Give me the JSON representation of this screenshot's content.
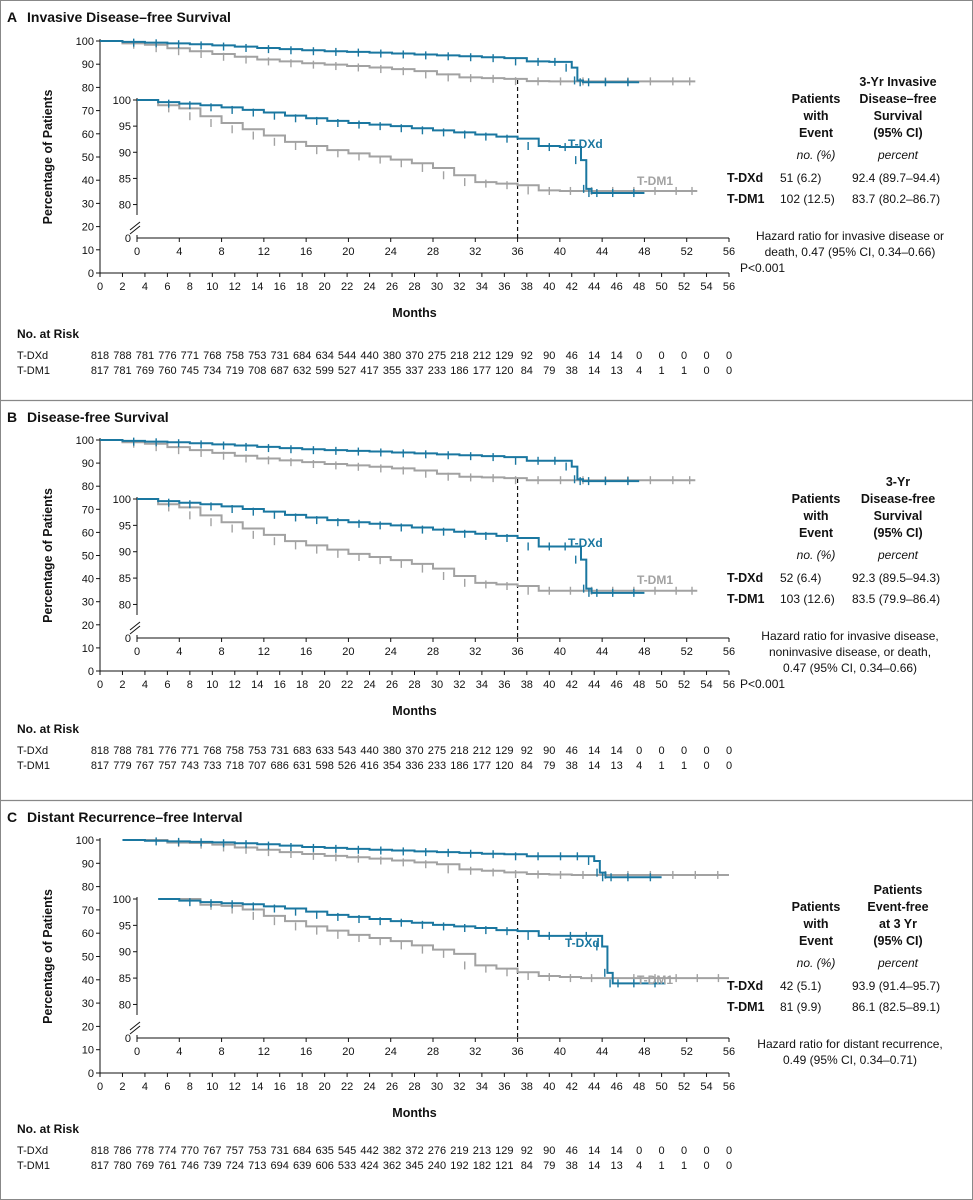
{
  "figure": {
    "border_color": "#888888"
  },
  "colors": {
    "T-DXd": "#1a77a0",
    "T-DM1": "#a2a2a2",
    "text": "#111111"
  },
  "x_ticks": [
    0,
    2,
    4,
    6,
    8,
    10,
    12,
    14,
    16,
    18,
    20,
    22,
    24,
    26,
    28,
    30,
    32,
    34,
    36,
    38,
    40,
    42,
    44,
    46,
    48,
    50,
    52,
    54,
    56
  ],
  "inset_x_ticks": [
    0,
    4,
    8,
    12,
    16,
    20,
    24,
    28,
    32,
    36,
    40,
    44,
    48,
    52,
    56
  ],
  "chart_data": [
    {
      "type": "line",
      "panel_letter": "A",
      "title": "Invasive Disease–free Survival",
      "xlabel": "Months",
      "ylabel": "Percentage of Patients",
      "xlim": [
        0,
        56
      ],
      "ylim": [
        0,
        100
      ],
      "y_ticks_main": [
        0,
        10,
        20,
        30,
        40,
        50,
        60,
        70,
        80,
        90,
        100
      ],
      "inset": {
        "y_ticks": [
          80,
          85,
          90,
          95,
          100
        ],
        "ylim": [
          78,
          100
        ],
        "vline_x": 36
      },
      "series": [
        {
          "name": "T-DXd",
          "x": [
            0,
            2,
            4,
            6,
            8,
            10,
            12,
            14,
            16,
            18,
            20,
            22,
            24,
            26,
            28,
            30,
            32,
            34,
            36,
            38,
            40,
            41,
            42,
            42.5,
            43,
            44,
            46,
            48
          ],
          "y": [
            100,
            99.6,
            99.3,
            99.0,
            98.6,
            98.1,
            97.6,
            97.0,
            96.5,
            96.0,
            95.6,
            95.3,
            95.0,
            94.6,
            94.2,
            93.8,
            93.4,
            93.0,
            92.6,
            91.2,
            91.0,
            91.0,
            88.5,
            83.0,
            82.2,
            82.2,
            82.2,
            82.2
          ]
        },
        {
          "name": "T-DM1",
          "x": [
            0,
            2,
            4,
            6,
            8,
            10,
            12,
            14,
            16,
            18,
            20,
            22,
            24,
            26,
            28,
            30,
            32,
            34,
            36,
            38,
            40,
            42,
            44,
            46,
            48,
            50,
            52,
            53
          ],
          "y": [
            100,
            99.0,
            98.4,
            96.9,
            95.6,
            94.4,
            93.2,
            92.0,
            91.2,
            90.4,
            89.8,
            89.2,
            88.6,
            87.9,
            87.0,
            85.6,
            84.3,
            84.0,
            83.7,
            82.7,
            82.6,
            82.6,
            82.6,
            82.6,
            82.6,
            82.6,
            82.6,
            82.6
          ]
        }
      ],
      "curve_labels": {
        "T-DXd": "T-DXd",
        "T-DM1": "T-DM1"
      },
      "table": {
        "col1_head": [
          "Patients",
          "with",
          "Event"
        ],
        "col2_head": [
          "3-Yr Invasive",
          "Disease–free",
          "Survival",
          "(95% CI)"
        ],
        "col1_unit": "no. (%)",
        "col2_unit": "percent",
        "rows": [
          {
            "label": "T-DXd",
            "events": "51 (6.2)",
            "estimate": "92.4 (89.7–94.4)"
          },
          {
            "label": "T-DM1",
            "events": "102 (12.5)",
            "estimate": "83.7 (80.2–86.7)"
          }
        ],
        "hr_lines": [
          "Hazard ratio for invasive disease or",
          "death, 0.47 (95% CI, 0.34–0.66)",
          "P<0.001"
        ]
      },
      "risk": {
        "header": "No. at Risk",
        "rows": [
          {
            "label": "T-DXd",
            "values": [
              "818",
              "788",
              "781",
              "776",
              "771",
              "768",
              "758",
              "753",
              "731",
              "684",
              "634",
              "544",
              "440",
              "380",
              "370",
              "275",
              "218",
              "212",
              "129",
              "92",
              "90",
              "46",
              "14",
              "14",
              "0",
              "0",
              "0",
              "0",
              "0"
            ]
          },
          {
            "label": "T-DM1",
            "values": [
              "817",
              "781",
              "769",
              "760",
              "745",
              "734",
              "719",
              "708",
              "687",
              "632",
              "599",
              "527",
              "417",
              "355",
              "337",
              "233",
              "186",
              "177",
              "120",
              "84",
              "79",
              "38",
              "14",
              "13",
              "4",
              "1",
              "1",
              "0",
              "0"
            ]
          }
        ]
      }
    },
    {
      "type": "line",
      "panel_letter": "B",
      "title": "Disease-free Survival",
      "xlabel": "Months",
      "ylabel": "Percentage of Patients",
      "xlim": [
        0,
        56
      ],
      "ylim": [
        0,
        100
      ],
      "y_ticks_main": [
        0,
        10,
        20,
        30,
        40,
        50,
        60,
        70,
        80,
        90,
        100
      ],
      "inset": {
        "y_ticks": [
          80,
          85,
          90,
          95,
          100
        ],
        "ylim": [
          78,
          100
        ],
        "vline_x": 36
      },
      "series": [
        {
          "name": "T-DXd",
          "x": [
            0,
            2,
            4,
            6,
            8,
            10,
            12,
            14,
            16,
            18,
            20,
            22,
            24,
            26,
            28,
            30,
            32,
            34,
            36,
            38,
            40,
            41,
            42,
            42.5,
            43,
            44,
            46,
            48
          ],
          "y": [
            100,
            99.6,
            99.3,
            99.0,
            98.6,
            98.1,
            97.6,
            97.0,
            96.5,
            96.0,
            95.6,
            95.3,
            95.0,
            94.6,
            94.2,
            93.8,
            93.4,
            93.0,
            92.6,
            91.0,
            91.0,
            91.0,
            88.5,
            83.0,
            82.2,
            82.2,
            82.2,
            82.2
          ]
        },
        {
          "name": "T-DM1",
          "x": [
            0,
            2,
            4,
            6,
            8,
            10,
            12,
            14,
            16,
            18,
            20,
            22,
            24,
            26,
            28,
            30,
            32,
            34,
            36,
            38,
            40,
            42,
            44,
            46,
            48,
            50,
            52,
            53
          ],
          "y": [
            100,
            99.0,
            98.4,
            96.9,
            95.6,
            94.4,
            93.2,
            92.0,
            91.2,
            90.4,
            89.6,
            89.0,
            88.4,
            87.7,
            86.8,
            85.4,
            84.1,
            83.8,
            83.5,
            82.6,
            82.6,
            82.6,
            82.6,
            82.6,
            82.6,
            82.6,
            82.6,
            82.6
          ]
        }
      ],
      "curve_labels": {
        "T-DXd": "T-DXd",
        "T-DM1": "T-DM1"
      },
      "table": {
        "col1_head": [
          "Patients",
          "with",
          "Event"
        ],
        "col2_head": [
          "3-Yr",
          "Disease-free",
          "Survival",
          "(95% CI)"
        ],
        "col1_unit": "no. (%)",
        "col2_unit": "percent",
        "rows": [
          {
            "label": "T-DXd",
            "events": "52 (6.4)",
            "estimate": "92.3 (89.5–94.3)"
          },
          {
            "label": "T-DM1",
            "events": "103 (12.6)",
            "estimate": "83.5 (79.9–86.4)"
          }
        ],
        "hr_lines": [
          "Hazard ratio for invasive disease,",
          "noninvasive disease, or death,",
          "0.47 (95% CI, 0.34–0.66)",
          "P<0.001"
        ]
      },
      "risk": {
        "header": "No. at Risk",
        "rows": [
          {
            "label": "T-DXd",
            "values": [
              "818",
              "788",
              "781",
              "776",
              "771",
              "768",
              "758",
              "753",
              "731",
              "683",
              "633",
              "543",
              "440",
              "380",
              "370",
              "275",
              "218",
              "212",
              "129",
              "92",
              "90",
              "46",
              "14",
              "14",
              "0",
              "0",
              "0",
              "0",
              "0"
            ]
          },
          {
            "label": "T-DM1",
            "values": [
              "817",
              "779",
              "767",
              "757",
              "743",
              "733",
              "718",
              "707",
              "686",
              "631",
              "598",
              "526",
              "416",
              "354",
              "336",
              "233",
              "186",
              "177",
              "120",
              "84",
              "79",
              "38",
              "14",
              "13",
              "4",
              "1",
              "1",
              "0",
              "0"
            ]
          }
        ]
      }
    },
    {
      "type": "line",
      "panel_letter": "C",
      "title": "Distant Recurrence–free Interval",
      "xlabel": "Months",
      "ylabel": "Percentage of Patients",
      "xlim": [
        0,
        56
      ],
      "ylim": [
        0,
        100
      ],
      "y_ticks_main": [
        0,
        10,
        20,
        30,
        40,
        50,
        60,
        70,
        80,
        90,
        100
      ],
      "inset": {
        "y_ticks": [
          80,
          85,
          90,
          95,
          100
        ],
        "ylim": [
          78,
          100
        ],
        "vline_x": 36
      },
      "series": [
        {
          "name": "T-DXd",
          "x": [
            2,
            4,
            6,
            8,
            10,
            12,
            14,
            16,
            18,
            20,
            22,
            24,
            26,
            28,
            30,
            32,
            34,
            36,
            38,
            40,
            42,
            43,
            44,
            44.5,
            45,
            46,
            48,
            50
          ],
          "y": [
            100,
            99.7,
            99.4,
            99.2,
            99.0,
            98.6,
            98.2,
            97.6,
            97.0,
            96.6,
            96.2,
            95.8,
            95.5,
            95.1,
            94.8,
            94.5,
            94.1,
            93.9,
            93.0,
            93.0,
            93.0,
            93.0,
            91.0,
            86.0,
            84.0,
            84.0,
            84.0,
            84.0
          ]
        },
        {
          "name": "T-DM1",
          "x": [
            4,
            6,
            8,
            10,
            12,
            14,
            16,
            18,
            20,
            22,
            24,
            26,
            28,
            30,
            32,
            34,
            36,
            38,
            40,
            42,
            44,
            46,
            48,
            50,
            52,
            54,
            56
          ],
          "y": [
            100,
            98.9,
            98.7,
            98.0,
            96.8,
            95.8,
            94.8,
            94.0,
            93.2,
            92.6,
            92.0,
            91.2,
            90.4,
            89.6,
            87.4,
            86.8,
            86.1,
            85.4,
            85.2,
            85.0,
            85.0,
            85.0,
            85.0,
            85.0,
            85.0,
            85.0,
            85.0
          ]
        }
      ],
      "curve_labels": {
        "T-DXd": "T-DXd",
        "T-DM1": "T-DM1"
      },
      "table": {
        "col1_head": [
          "Patients",
          "with",
          "Event"
        ],
        "col2_head": [
          "Patients",
          "Event-free",
          "at 3 Yr",
          "(95% CI)"
        ],
        "col1_unit": "no. (%)",
        "col2_unit": "percent",
        "rows": [
          {
            "label": "T-DXd",
            "events": "42 (5.1)",
            "estimate": "93.9 (91.4–95.7)"
          },
          {
            "label": "T-DM1",
            "events": "81 (9.9)",
            "estimate": "86.1 (82.5–89.1)"
          }
        ],
        "hr_lines": [
          "Hazard ratio for distant recurrence,",
          "0.49 (95% CI, 0.34–0.71)"
        ]
      },
      "risk": {
        "header": "No. at Risk",
        "rows": [
          {
            "label": "T-DXd",
            "values": [
              "818",
              "786",
              "778",
              "774",
              "770",
              "767",
              "757",
              "753",
              "731",
              "684",
              "635",
              "545",
              "442",
              "382",
              "372",
              "276",
              "219",
              "213",
              "129",
              "92",
              "90",
              "46",
              "14",
              "14",
              "0",
              "0",
              "0",
              "0",
              "0"
            ]
          },
          {
            "label": "T-DM1",
            "values": [
              "817",
              "780",
              "769",
              "761",
              "746",
              "739",
              "724",
              "713",
              "694",
              "639",
              "606",
              "533",
              "424",
              "362",
              "345",
              "240",
              "192",
              "182",
              "121",
              "84",
              "79",
              "38",
              "14",
              "13",
              "4",
              "1",
              "1",
              "0",
              "0"
            ]
          }
        ]
      }
    }
  ]
}
